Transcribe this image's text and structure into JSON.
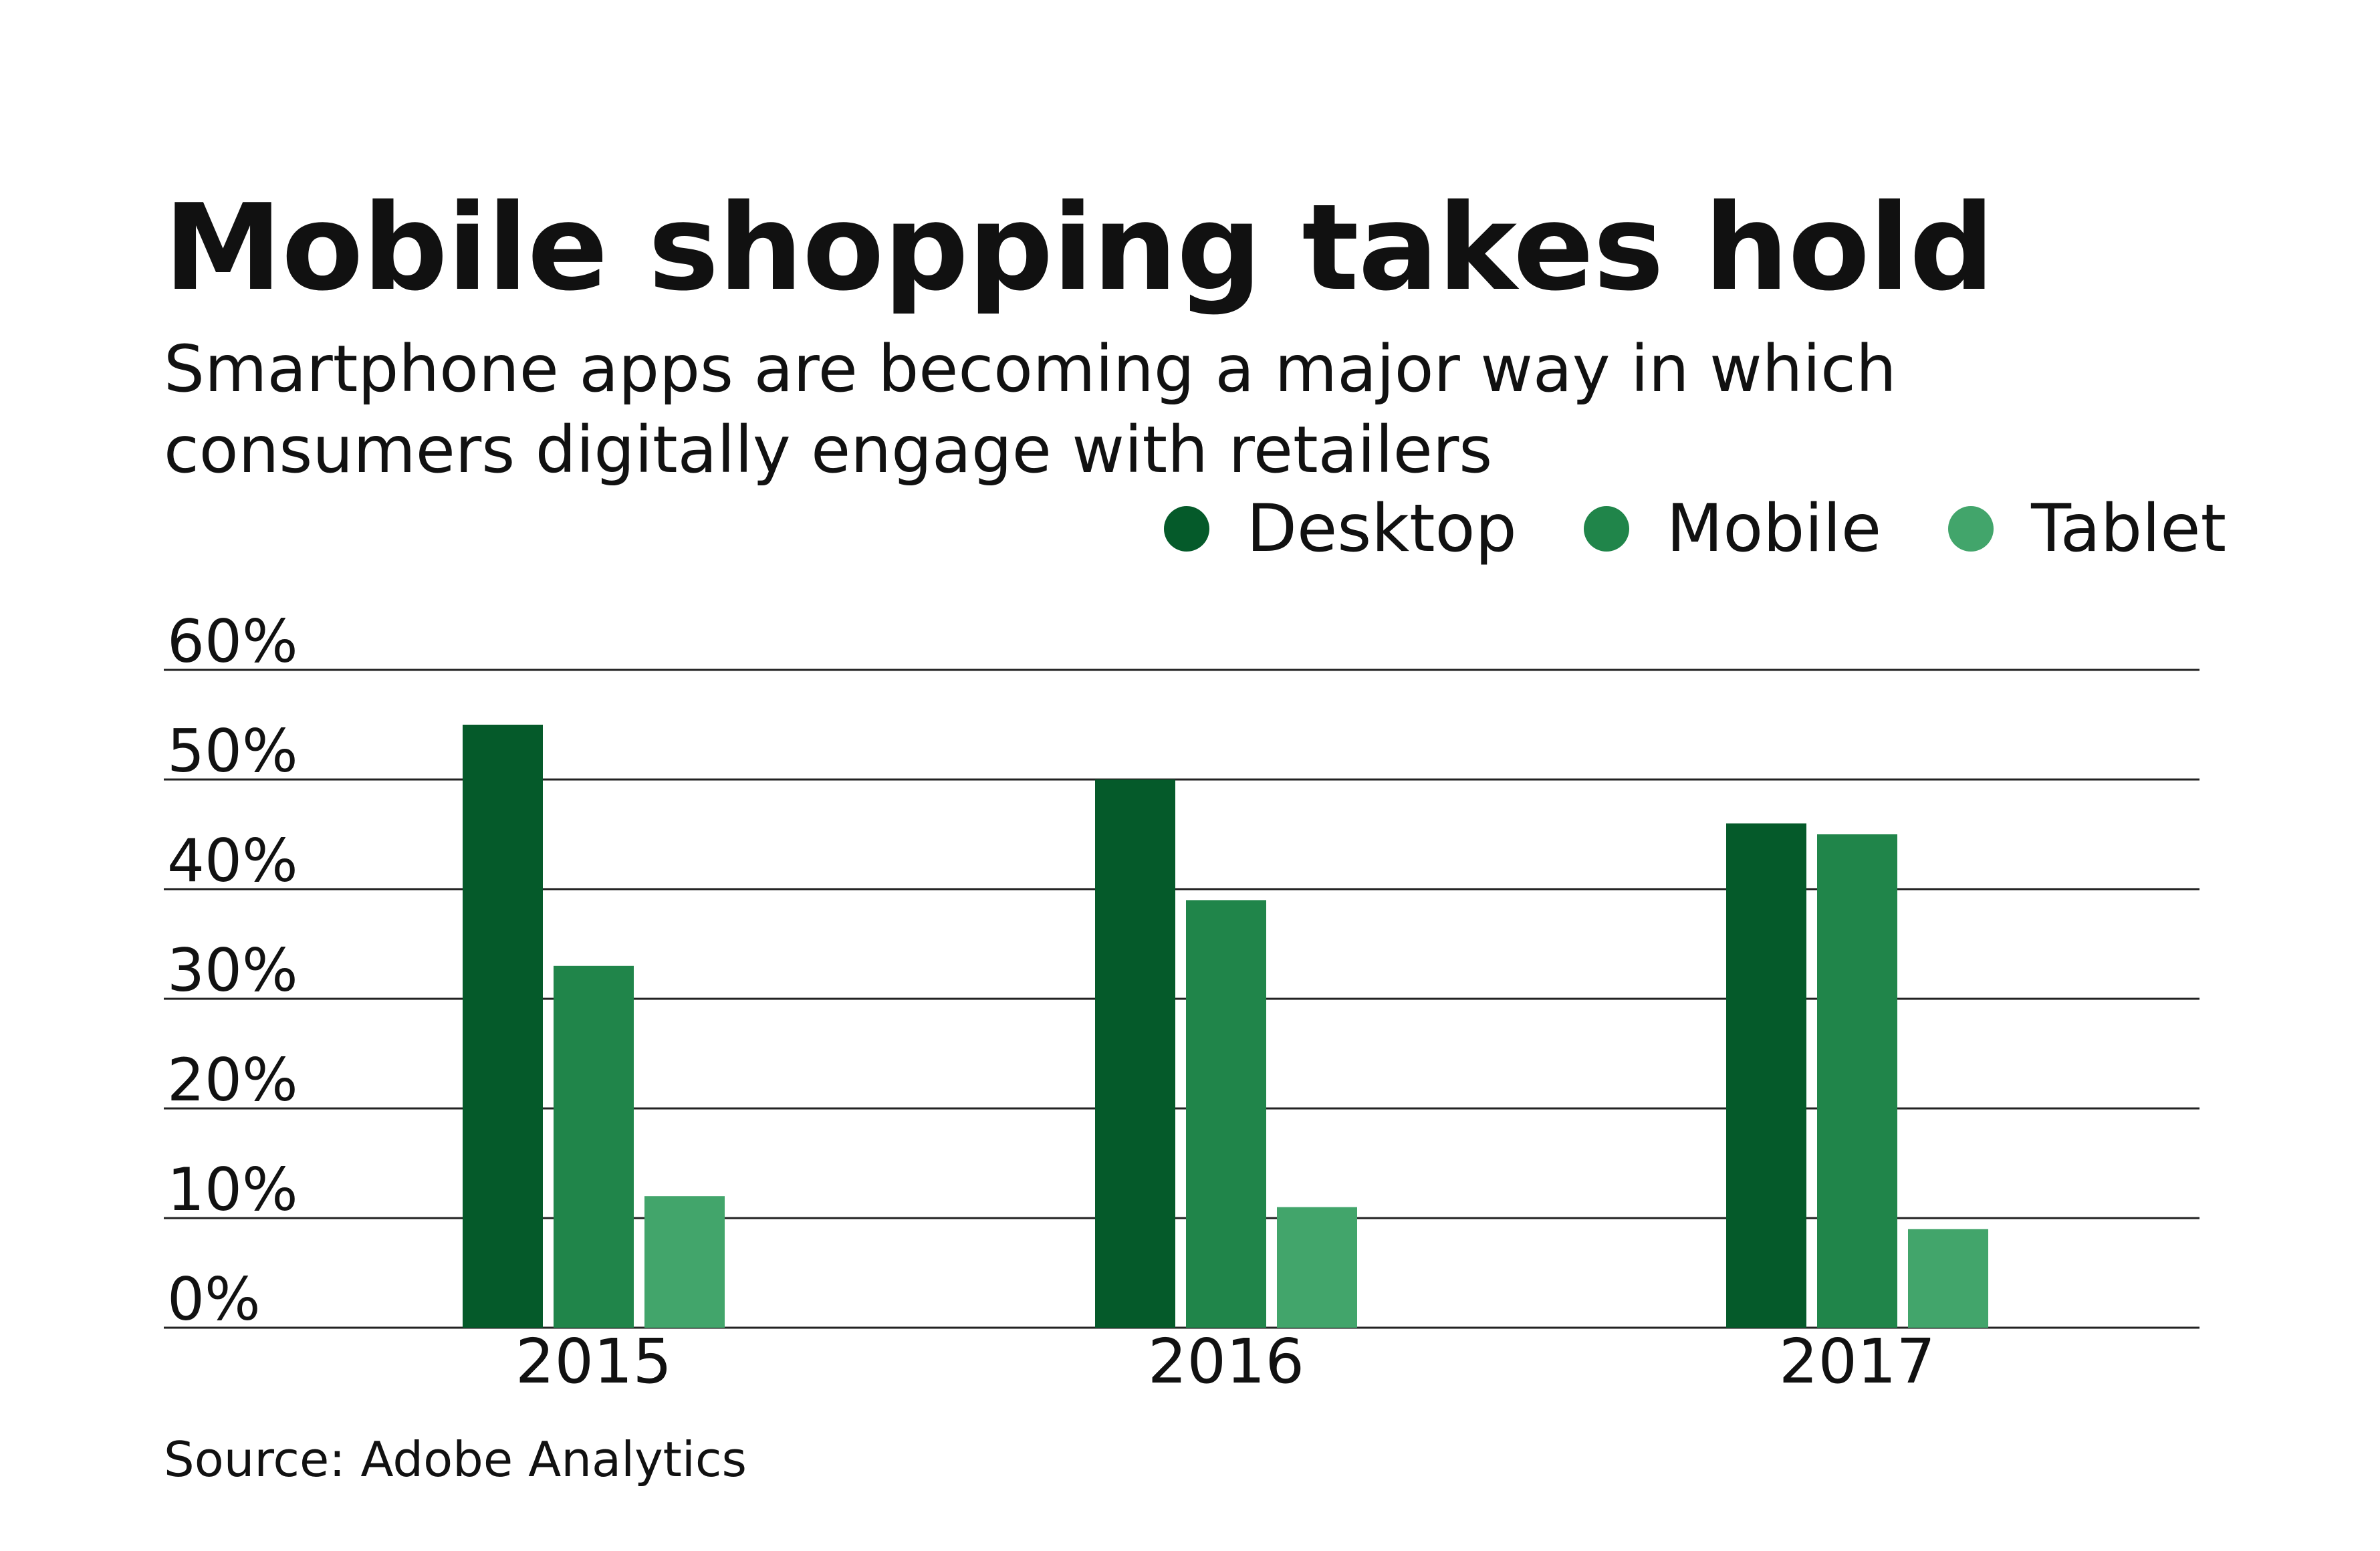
{
  "header": {
    "title": "Mobile shopping takes hold",
    "subtitle": "Smartphone apps are becoming a major way in which consumers digitally engage with retailers"
  },
  "source": "Source: Adobe Analytics",
  "colors": {
    "desktop": "#055a2a",
    "mobile": "#20854a",
    "tablet": "#42a56b",
    "gridline": "#222222"
  },
  "chart_data": {
    "type": "bar",
    "title": "Mobile shopping takes hold",
    "subtitle": "Smartphone apps are becoming a major way in which consumers digitally engage with retailers",
    "categories": [
      "2015",
      "2016",
      "2017"
    ],
    "series": [
      {
        "name": "Desktop",
        "values": [
          55,
          50,
          46
        ],
        "color": "#055a2a"
      },
      {
        "name": "Mobile",
        "values": [
          33,
          39,
          45
        ],
        "color": "#20854a"
      },
      {
        "name": "Tablet",
        "values": [
          12,
          11,
          9
        ],
        "color": "#42a56b"
      }
    ],
    "yticks": [
      0,
      10,
      20,
      30,
      40,
      50,
      60
    ],
    "ytick_labels": [
      "0%",
      "10%",
      "20%",
      "30%",
      "40%",
      "50%",
      "60%"
    ],
    "ylim": [
      0,
      60
    ],
    "xlabel": "",
    "ylabel": "",
    "grid": true,
    "legend_position": "top-right"
  }
}
